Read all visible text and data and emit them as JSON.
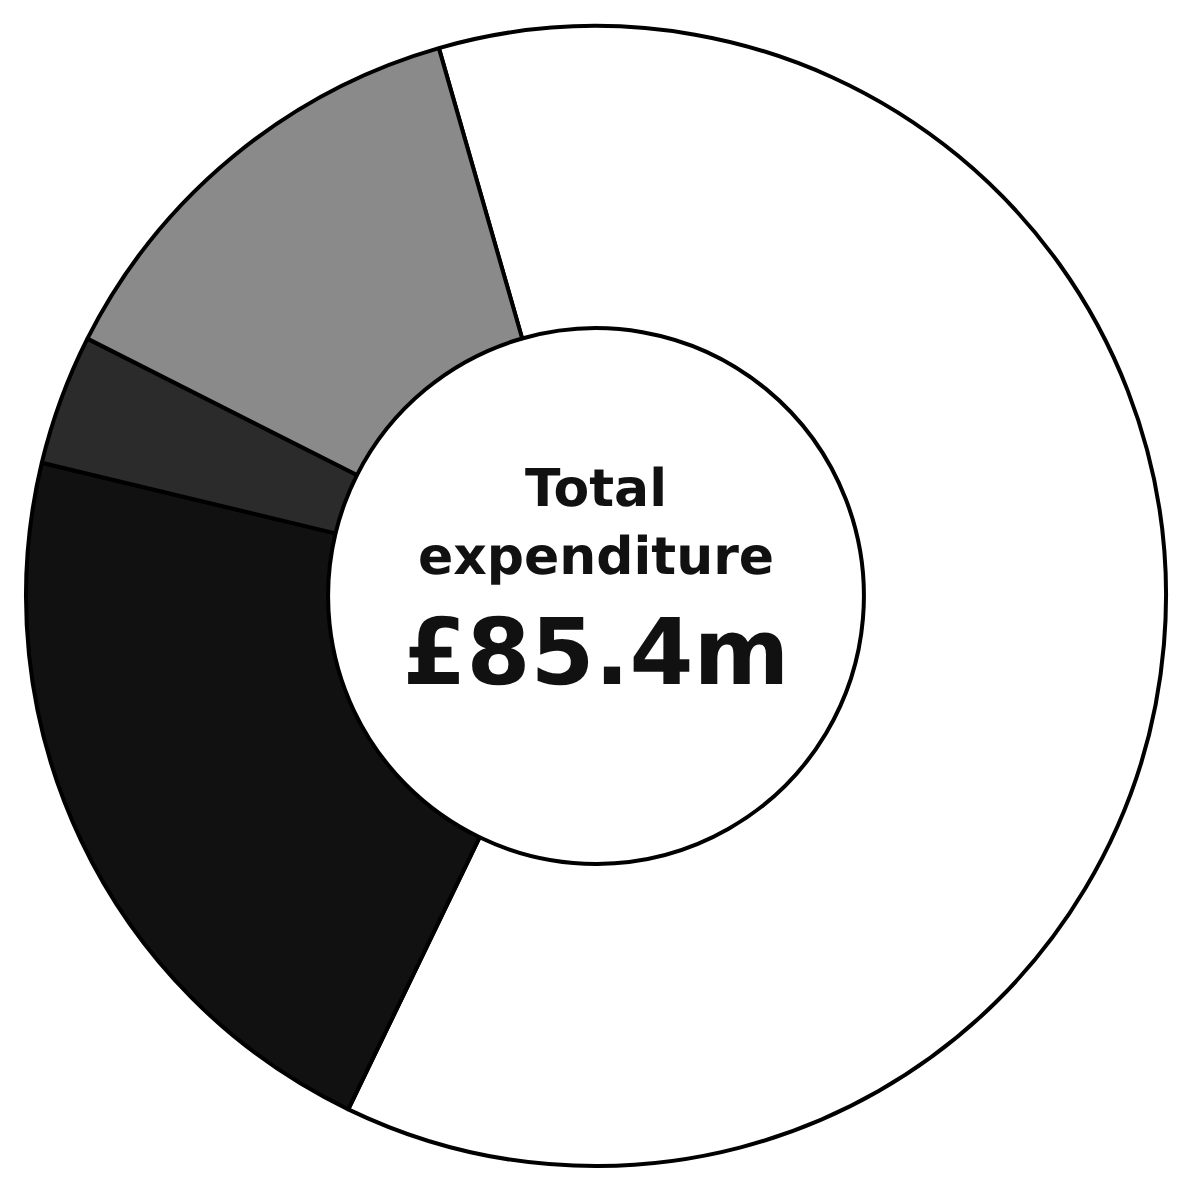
{
  "chart_data": {
    "type": "donut",
    "title": "Total expenditure",
    "subtitle": "£85.4m",
    "categories": [
      null,
      null,
      null,
      null
    ],
    "values": [
      61.6,
      21.6,
      3.7,
      13.1
    ],
    "colors": [
      "#ffffff",
      "#111111",
      "#2b2b2b",
      "#8a8a8a"
    ]
  }
}
